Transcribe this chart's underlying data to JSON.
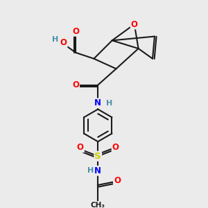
{
  "bg_color": "#ebebeb",
  "bond_color": "#1a1a1a",
  "atom_colors": {
    "O": "#ff0000",
    "N": "#0000ff",
    "S": "#cccc00",
    "H": "#4a8fa8",
    "C": "#1a1a1a"
  }
}
